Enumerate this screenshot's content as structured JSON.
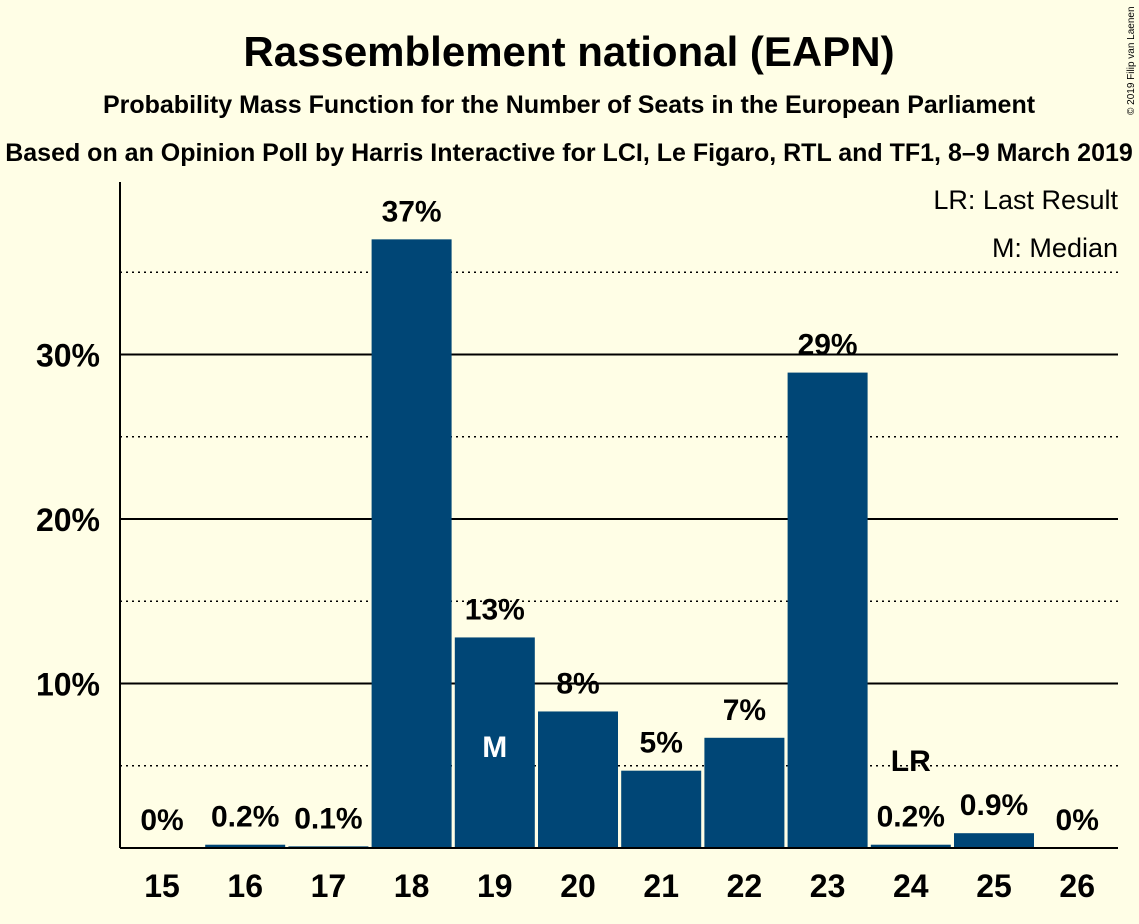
{
  "chart_data": {
    "type": "bar",
    "title": "Rassemblement national (EAPN)",
    "subtitle": "Probability Mass Function for the Number of Seats in the European Parliament",
    "source_line": "Based on an Opinion Poll by Harris Interactive for LCI, Le Figaro, RTL and TF1, 8–9 March 2019",
    "credit": "© 2019 Filip van Laenen",
    "categories": [
      "15",
      "16",
      "17",
      "18",
      "19",
      "20",
      "21",
      "22",
      "23",
      "24",
      "25",
      "26"
    ],
    "values": [
      0,
      0.2,
      0.1,
      37,
      12.8,
      8.3,
      4.7,
      6.7,
      28.9,
      0.2,
      0.9,
      0
    ],
    "value_labels": [
      "0%",
      "0.2%",
      "0.1%",
      "37%",
      "13%",
      "8%",
      "5%",
      "7%",
      "29%",
      "0.2%",
      "0.9%",
      "0%"
    ],
    "yticks": [
      10,
      20,
      30
    ],
    "ytick_labels": [
      "10%",
      "20%",
      "30%"
    ],
    "minor_gridlines": [
      5,
      15,
      25,
      35
    ],
    "ylim": [
      0,
      40
    ],
    "median_index": 4,
    "median_marker": "M",
    "last_result_index": 9,
    "last_result_marker": "LR",
    "legend": [
      "LR: Last Result",
      "M: Median"
    ],
    "legend_position": "top-right",
    "colors": {
      "bar": "#004676",
      "background": "#FFFEE6",
      "grid": "#000000"
    }
  }
}
